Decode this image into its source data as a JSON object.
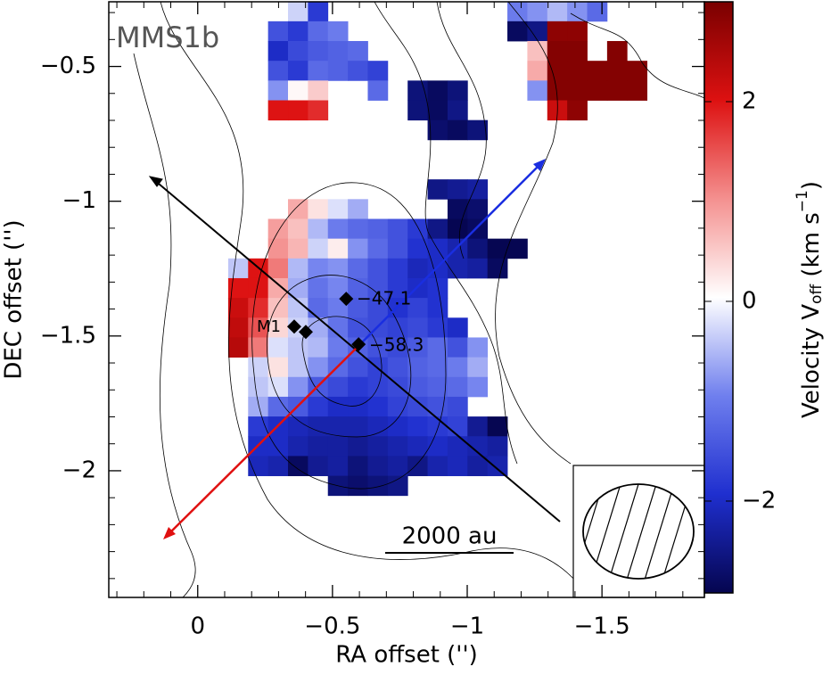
{
  "chart_data": {
    "type": "velocity-map",
    "annotations": [
      "MMS1b",
      "M1",
      "−47.1",
      "−58.3",
      "2000 au"
    ],
    "x_label": "RA offset ('')",
    "y_label": "DEC offset ('')",
    "colorbar_label": [
      "Velocity V",
      "off",
      " (km s",
      "−1",
      ")"
    ],
    "xlim": [
      0.33,
      -1.88
    ],
    "ylim": [
      -2.47,
      -0.26
    ],
    "xticks": [
      {
        "value": 0,
        "label": "0"
      },
      {
        "value": -0.5,
        "label": "−0.5"
      },
      {
        "value": -1,
        "label": "−1"
      },
      {
        "value": -1.5,
        "label": "−1.5"
      }
    ],
    "yticks": [
      {
        "value": -0.5,
        "label": "−0.5"
      },
      {
        "value": -1,
        "label": "−1"
      },
      {
        "value": -1.5,
        "label": "−1.5"
      },
      {
        "value": -2,
        "label": "−2"
      }
    ],
    "xminorticks": [
      0.3,
      0.2,
      0.1,
      -0.1,
      -0.2,
      -0.3,
      -0.4,
      -0.6,
      -0.7,
      -0.8,
      -0.9,
      -1.1,
      -1.2,
      -1.3,
      -1.4,
      -1.6,
      -1.7,
      -1.8
    ],
    "yminorticks": [
      -0.3,
      -0.4,
      -0.6,
      -0.7,
      -0.8,
      -0.9,
      -1.1,
      -1.2,
      -1.3,
      -1.4,
      -1.6,
      -1.7,
      -1.8,
      -1.9,
      -2.1,
      -2.2,
      -2.3,
      -2.4
    ],
    "clim": [
      -2.92,
      3.0
    ],
    "cticks": [
      {
        "value": -2,
        "label": "−2"
      },
      {
        "value": 0,
        "label": "0"
      },
      {
        "value": 2,
        "label": "2"
      }
    ],
    "cmap": [
      "#05054f",
      "#1f2fcf",
      "#6f7fee",
      "#ffffff",
      "#f4908f",
      "#dd1111",
      "#7a0000"
    ],
    "markers": {
      "x": [
        -0.358,
        -0.401,
        -0.551,
        -0.597
      ],
      "y": [
        -1.465,
        -1.485,
        -1.362,
        -1.531
      ]
    },
    "image": {
      "extent": [
        -0.113,
        -1.667,
        -0.259,
        -2.092
      ],
      "values": [
        [
          null,
          null,
          null,
          -0.3,
          -1.8,
          null,
          null,
          null,
          null,
          null,
          null,
          null,
          null,
          null,
          -1.0,
          -0.8,
          -0.5,
          -0.8,
          -1.2,
          null,
          null
        ],
        [
          null,
          null,
          -1.5,
          -1.8,
          -1.2,
          -1.0,
          null,
          null,
          null,
          null,
          null,
          null,
          null,
          null,
          -2.8,
          -2.5,
          2.8,
          2.8,
          null,
          null,
          null
        ],
        [
          null,
          null,
          -2.0,
          -1.6,
          -1.4,
          -1.3,
          -1.2,
          null,
          null,
          null,
          null,
          null,
          null,
          null,
          null,
          0.6,
          2.9,
          2.9,
          null,
          2.9,
          null
        ],
        [
          null,
          null,
          -1.5,
          -1.8,
          -1.2,
          -1.3,
          -1.5,
          -1.7,
          null,
          null,
          null,
          null,
          null,
          null,
          null,
          0.8,
          2.9,
          2.9,
          2.9,
          2.9,
          2.9
        ],
        [
          null,
          null,
          -0.8,
          0.1,
          0.5,
          null,
          null,
          -1.2,
          null,
          -2.6,
          -2.8,
          -2.6,
          null,
          null,
          null,
          -0.8,
          2.9,
          2.9,
          2.9,
          2.9,
          2.9
        ],
        [
          null,
          null,
          2.0,
          2.0,
          1.8,
          null,
          null,
          null,
          null,
          -2.6,
          -2.8,
          -2.5,
          null,
          null,
          null,
          null,
          2.2,
          2.8,
          null,
          null,
          null
        ],
        [
          null,
          null,
          null,
          null,
          null,
          null,
          null,
          null,
          null,
          null,
          -2.7,
          -2.8,
          -2.6,
          null,
          null,
          null,
          null,
          null,
          null,
          null,
          null
        ],
        [
          null,
          null,
          null,
          null,
          null,
          null,
          null,
          null,
          null,
          null,
          null,
          null,
          null,
          null,
          null,
          null,
          null,
          null,
          null,
          null,
          null
        ],
        [
          null,
          null,
          null,
          null,
          null,
          null,
          null,
          null,
          null,
          null,
          null,
          null,
          null,
          null,
          null,
          null,
          null,
          null,
          null,
          null,
          null
        ],
        [
          null,
          null,
          null,
          null,
          null,
          null,
          null,
          null,
          null,
          null,
          -2.5,
          -2.4,
          -2.3,
          null,
          null,
          null,
          null,
          null,
          null,
          null,
          null
        ],
        [
          null,
          null,
          null,
          0.8,
          0.3,
          -0.2,
          -0.6,
          null,
          null,
          null,
          null,
          -2.8,
          -2.7,
          null,
          null,
          null,
          null,
          null,
          null,
          null,
          null
        ],
        [
          null,
          null,
          0.9,
          0.6,
          -0.5,
          -1.0,
          -1.2,
          -1.3,
          -1.5,
          -1.8,
          -2.5,
          -2.9,
          -2.8,
          null,
          null,
          null,
          null,
          null,
          null,
          null,
          null
        ],
        [
          null,
          null,
          1.0,
          0.7,
          -0.3,
          0.2,
          -0.8,
          -1.2,
          -1.5,
          -1.9,
          -2.0,
          -2.2,
          -2.6,
          -2.9,
          -2.9,
          null,
          null,
          null,
          null,
          null,
          null
        ],
        [
          -0.4,
          2.0,
          1.2,
          -0.5,
          -0.9,
          -0.8,
          -1.2,
          -1.5,
          -1.8,
          -2.1,
          -2.0,
          -2.2,
          -2.3,
          -2.8,
          null,
          null,
          null,
          null,
          null,
          null,
          null
        ],
        [
          2.0,
          2.0,
          0.8,
          -0.6,
          -1.1,
          -0.9,
          -1.3,
          -1.5,
          -1.8,
          -2.0,
          -1.9,
          null,
          null,
          null,
          null,
          null,
          null,
          null,
          null,
          null,
          null
        ],
        [
          2.2,
          1.8,
          0.6,
          -0.4,
          -1.2,
          -1.0,
          -1.4,
          -1.6,
          -1.9,
          -1.7,
          -1.9,
          null,
          null,
          null,
          null,
          null,
          null,
          null,
          null,
          null,
          null
        ],
        [
          2.3,
          1.5,
          0.4,
          -0.3,
          -0.6,
          -1.1,
          -1.5,
          -1.6,
          -1.7,
          -1.6,
          -1.8,
          -2.0,
          null,
          null,
          null,
          null,
          null,
          null,
          null,
          null,
          null
        ],
        [
          2.4,
          1.2,
          -0.2,
          -0.4,
          -0.5,
          -1.0,
          -1.3,
          -1.5,
          -1.6,
          -1.4,
          -1.2,
          -1.5,
          -0.8,
          null,
          null,
          null,
          null,
          null,
          null,
          null,
          null
        ],
        [
          null,
          -0.3,
          0.3,
          -0.4,
          -0.8,
          -1.2,
          -1.5,
          -1.7,
          -1.5,
          -1.3,
          -1.2,
          -1.0,
          -0.6,
          null,
          null,
          null,
          null,
          null,
          null,
          null,
          null
        ],
        [
          null,
          -0.4,
          -0.2,
          -0.8,
          -1.4,
          -1.6,
          -1.8,
          -1.7,
          -1.6,
          -1.4,
          -1.3,
          -1.2,
          -0.9,
          null,
          null,
          null,
          null,
          null,
          null,
          null,
          null
        ],
        [
          null,
          -0.6,
          -1.2,
          -1.4,
          -1.8,
          -2.0,
          -2.0,
          -1.9,
          -1.7,
          -1.6,
          -1.5,
          -1.6,
          null,
          null,
          null,
          null,
          null,
          null,
          null,
          null,
          null
        ],
        [
          null,
          -1.8,
          -2.0,
          -2.1,
          -2.2,
          -2.2,
          -2.2,
          -2.1,
          -2.0,
          -1.9,
          -1.8,
          -1.7,
          -2.4,
          -2.9,
          null,
          null,
          null,
          null,
          null,
          null,
          null
        ],
        [
          null,
          -2.0,
          -2.0,
          -2.2,
          -2.3,
          -2.3,
          -2.4,
          -2.3,
          -2.2,
          -2.1,
          -2.0,
          -2.1,
          -2.2,
          -2.3,
          null,
          null,
          null,
          null,
          null,
          null,
          null
        ],
        [
          null,
          -2.1,
          -2.2,
          -2.8,
          -2.4,
          -2.3,
          -2.6,
          -2.4,
          -2.3,
          -2.5,
          -2.2,
          -2.1,
          -2.3,
          -2.2,
          null,
          null,
          null,
          null,
          null,
          null,
          null
        ],
        [
          null,
          null,
          null,
          null,
          null,
          -2.6,
          -2.7,
          -2.6,
          -2.5,
          null,
          null,
          null,
          null,
          null,
          null,
          null,
          null,
          null,
          null,
          null,
          null
        ]
      ]
    }
  }
}
